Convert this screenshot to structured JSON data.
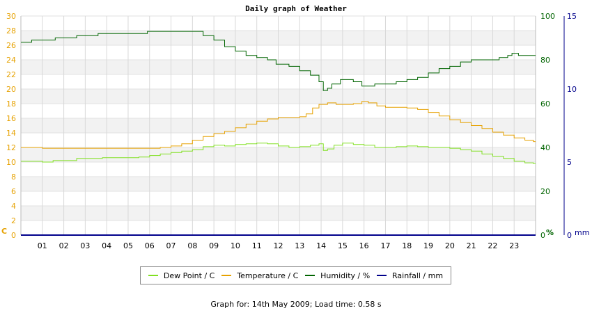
{
  "chart_data": {
    "type": "line",
    "title": "Daily graph of Weather",
    "footer": "Graph for: 14th May 2009; Load time: 0.58 s",
    "x_ticks": [
      "01",
      "02",
      "03",
      "04",
      "05",
      "06",
      "07",
      "08",
      "09",
      "10",
      "11",
      "12",
      "13",
      "14",
      "15",
      "16",
      "17",
      "18",
      "19",
      "20",
      "21",
      "22",
      "23"
    ],
    "xlim": [
      0,
      24
    ],
    "axes": {
      "temperature": {
        "unit_label": "C",
        "range": [
          0,
          30
        ],
        "ticks": [
          0,
          2,
          4,
          6,
          8,
          10,
          12,
          14,
          16,
          18,
          20,
          22,
          24,
          26,
          28,
          30
        ],
        "color": "#e6a100"
      },
      "humidity": {
        "unit_label": "%",
        "range": [
          0,
          100
        ],
        "ticks": [
          0,
          20,
          40,
          60,
          80,
          100
        ],
        "color": "#006400"
      },
      "rainfall": {
        "unit_label": "mm",
        "range": [
          0,
          15
        ],
        "ticks": [
          0,
          5,
          10,
          15
        ],
        "color": "#00008b"
      }
    },
    "grid": true,
    "legend_position": "bottom",
    "series": [
      {
        "name": "Dew Point / C",
        "color": "#80e020",
        "axis": "temperature",
        "points": [
          [
            0,
            10.1
          ],
          [
            1,
            10.0
          ],
          [
            1.5,
            10.2
          ],
          [
            2.6,
            10.5
          ],
          [
            3.8,
            10.6
          ],
          [
            5.5,
            10.7
          ],
          [
            6,
            10.9
          ],
          [
            6.5,
            11.1
          ],
          [
            7,
            11.3
          ],
          [
            7.5,
            11.5
          ],
          [
            8,
            11.7
          ],
          [
            8.5,
            12.1
          ],
          [
            9,
            12.3
          ],
          [
            9.5,
            12.2
          ],
          [
            10,
            12.4
          ],
          [
            10.5,
            12.5
          ],
          [
            11,
            12.6
          ],
          [
            11.5,
            12.5
          ],
          [
            12,
            12.2
          ],
          [
            12.5,
            12.0
          ],
          [
            13,
            12.1
          ],
          [
            13.5,
            12.3
          ],
          [
            13.9,
            12.5
          ],
          [
            14.1,
            11.6
          ],
          [
            14.3,
            11.8
          ],
          [
            14.6,
            12.3
          ],
          [
            15,
            12.6
          ],
          [
            15.5,
            12.4
          ],
          [
            16,
            12.3
          ],
          [
            16.5,
            12.0
          ],
          [
            17,
            12.0
          ],
          [
            17.5,
            12.1
          ],
          [
            18,
            12.2
          ],
          [
            18.5,
            12.1
          ],
          [
            19,
            12.0
          ],
          [
            19.5,
            12.0
          ],
          [
            20,
            11.9
          ],
          [
            20.5,
            11.7
          ],
          [
            21,
            11.5
          ],
          [
            21.5,
            11.1
          ],
          [
            22,
            10.8
          ],
          [
            22.5,
            10.5
          ],
          [
            23,
            10.1
          ],
          [
            23.5,
            9.9
          ],
          [
            23.9,
            9.8
          ]
        ]
      },
      {
        "name": "Temperature / C",
        "color": "#e6a100",
        "axis": "temperature",
        "points": [
          [
            0,
            12.0
          ],
          [
            1,
            11.9
          ],
          [
            2,
            11.9
          ],
          [
            4,
            11.9
          ],
          [
            6,
            11.9
          ],
          [
            6.5,
            12.0
          ],
          [
            7,
            12.2
          ],
          [
            7.5,
            12.5
          ],
          [
            8,
            13.0
          ],
          [
            8.5,
            13.5
          ],
          [
            9,
            13.9
          ],
          [
            9.5,
            14.2
          ],
          [
            10,
            14.7
          ],
          [
            10.5,
            15.2
          ],
          [
            11,
            15.6
          ],
          [
            11.5,
            15.9
          ],
          [
            12,
            16.1
          ],
          [
            12.5,
            16.1
          ],
          [
            13,
            16.2
          ],
          [
            13.3,
            16.6
          ],
          [
            13.6,
            17.4
          ],
          [
            13.9,
            17.9
          ],
          [
            14.3,
            18.1
          ],
          [
            14.7,
            17.9
          ],
          [
            15,
            17.9
          ],
          [
            15.5,
            18.0
          ],
          [
            15.9,
            18.3
          ],
          [
            16.2,
            18.1
          ],
          [
            16.6,
            17.7
          ],
          [
            17,
            17.5
          ],
          [
            17.5,
            17.5
          ],
          [
            18,
            17.4
          ],
          [
            18.5,
            17.2
          ],
          [
            19,
            16.8
          ],
          [
            19.5,
            16.3
          ],
          [
            20,
            15.8
          ],
          [
            20.5,
            15.4
          ],
          [
            21,
            15.0
          ],
          [
            21.5,
            14.6
          ],
          [
            22,
            14.1
          ],
          [
            22.5,
            13.7
          ],
          [
            23,
            13.3
          ],
          [
            23.5,
            13.0
          ],
          [
            23.9,
            12.8
          ]
        ]
      },
      {
        "name": "Humidity / %",
        "color": "#006400",
        "axis": "humidity",
        "points": [
          [
            0,
            88
          ],
          [
            0.5,
            89
          ],
          [
            1,
            89
          ],
          [
            1.6,
            90
          ],
          [
            2.6,
            91
          ],
          [
            3.6,
            92
          ],
          [
            5,
            92
          ],
          [
            5.9,
            93
          ],
          [
            7,
            93
          ],
          [
            7.9,
            93
          ],
          [
            8.5,
            91
          ],
          [
            9,
            89
          ],
          [
            9.5,
            86
          ],
          [
            10,
            84
          ],
          [
            10.5,
            82
          ],
          [
            11,
            81
          ],
          [
            11.5,
            80
          ],
          [
            11.9,
            78
          ],
          [
            12.5,
            77
          ],
          [
            13,
            75
          ],
          [
            13.5,
            73
          ],
          [
            13.9,
            70
          ],
          [
            14.1,
            66
          ],
          [
            14.3,
            67
          ],
          [
            14.5,
            69
          ],
          [
            14.9,
            71
          ],
          [
            15.5,
            70
          ],
          [
            15.9,
            68
          ],
          [
            16.5,
            69
          ],
          [
            17,
            69
          ],
          [
            17.5,
            70
          ],
          [
            18,
            71
          ],
          [
            18.5,
            72
          ],
          [
            19,
            74
          ],
          [
            19.5,
            76
          ],
          [
            20,
            77
          ],
          [
            20.5,
            79
          ],
          [
            21,
            80
          ],
          [
            21.5,
            80
          ],
          [
            22,
            80
          ],
          [
            22.3,
            81
          ],
          [
            22.7,
            82
          ],
          [
            22.9,
            83
          ],
          [
            23.2,
            82
          ],
          [
            23.9,
            82
          ]
        ]
      },
      {
        "name": "Rainfall / mm",
        "color": "#00008b",
        "axis": "rainfall",
        "points": [
          [
            0,
            0
          ],
          [
            24,
            0
          ]
        ]
      }
    ]
  }
}
